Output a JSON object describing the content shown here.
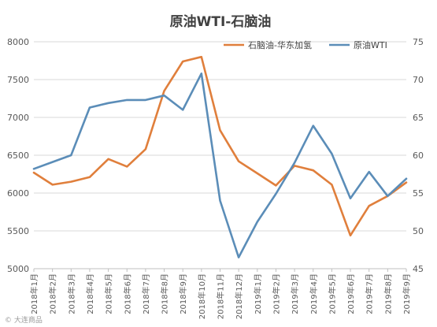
{
  "chart_data": {
    "type": "line",
    "title": "原油WTI-石脑油",
    "categories": [
      "2018年1月",
      "2018年2月",
      "2018年3月",
      "2018年4月",
      "2018年5月",
      "2018年6月",
      "2018年7月",
      "2018年8月",
      "2018年9月",
      "2018年10月",
      "2018年11月",
      "2018年12月",
      "2019年1月",
      "2019年2月",
      "2019年3月",
      "2019年4月",
      "2019年5月",
      "2019年6月",
      "2019年7月",
      "2019年8月",
      "2019年9月"
    ],
    "x_points": [
      "2018年1月",
      "2018年1月b",
      "2018年2月",
      "2018年3月",
      "2018年4月",
      "2018年4月b",
      "2018年5月",
      "2018年6月",
      "2018年7月",
      "2018年8月",
      "2018年8月b",
      "2018年9月",
      "2018年10月",
      "2018年11月",
      "2018年12月",
      "2019年1月",
      "2019年2月",
      "2019年3月",
      "2019年4月",
      "2019年5月",
      "2019年6月",
      "2019年7月",
      "2019年8月",
      "2019年9月",
      "2019年9月b"
    ],
    "x_positions": [
      0,
      1,
      2,
      3,
      4,
      5,
      6,
      7,
      8,
      9,
      10,
      11,
      12,
      13,
      14,
      15,
      16,
      17,
      18,
      19,
      20,
      21,
      22,
      23,
      24
    ],
    "y_left": {
      "min": 5000,
      "max": 8000,
      "step": 500,
      "ticks": [
        "5000",
        "5500",
        "6000",
        "6500",
        "7000",
        "7500",
        "8000"
      ]
    },
    "y_right": {
      "min": 45,
      "max": 75,
      "step": 5,
      "ticks": [
        "45",
        "50",
        "55",
        "60",
        "65",
        "70",
        "75"
      ]
    },
    "legend_position": "top-right",
    "grid": true,
    "series": [
      {
        "name": "石脑油-华东加氢",
        "axis": "left",
        "color": "#E07F3C",
        "values": [
          6270,
          6110,
          6150,
          6210,
          6450,
          6350,
          6580,
          7350,
          7740,
          7800,
          6830,
          6420,
          6260,
          6100,
          6360,
          6300,
          6110,
          5440,
          5830,
          5960,
          6140
        ]
      },
      {
        "name": "原油WTI",
        "axis": "right",
        "color": "#5B8DB8",
        "values": [
          58.2,
          59.1,
          60.0,
          66.3,
          66.9,
          67.3,
          67.3,
          67.9,
          66.0,
          70.8,
          54.0,
          46.5,
          51.2,
          54.9,
          59.0,
          63.9,
          60.2,
          54.3,
          57.8,
          54.6,
          56.9
        ]
      }
    ]
  },
  "watermark": "© 大连商品"
}
